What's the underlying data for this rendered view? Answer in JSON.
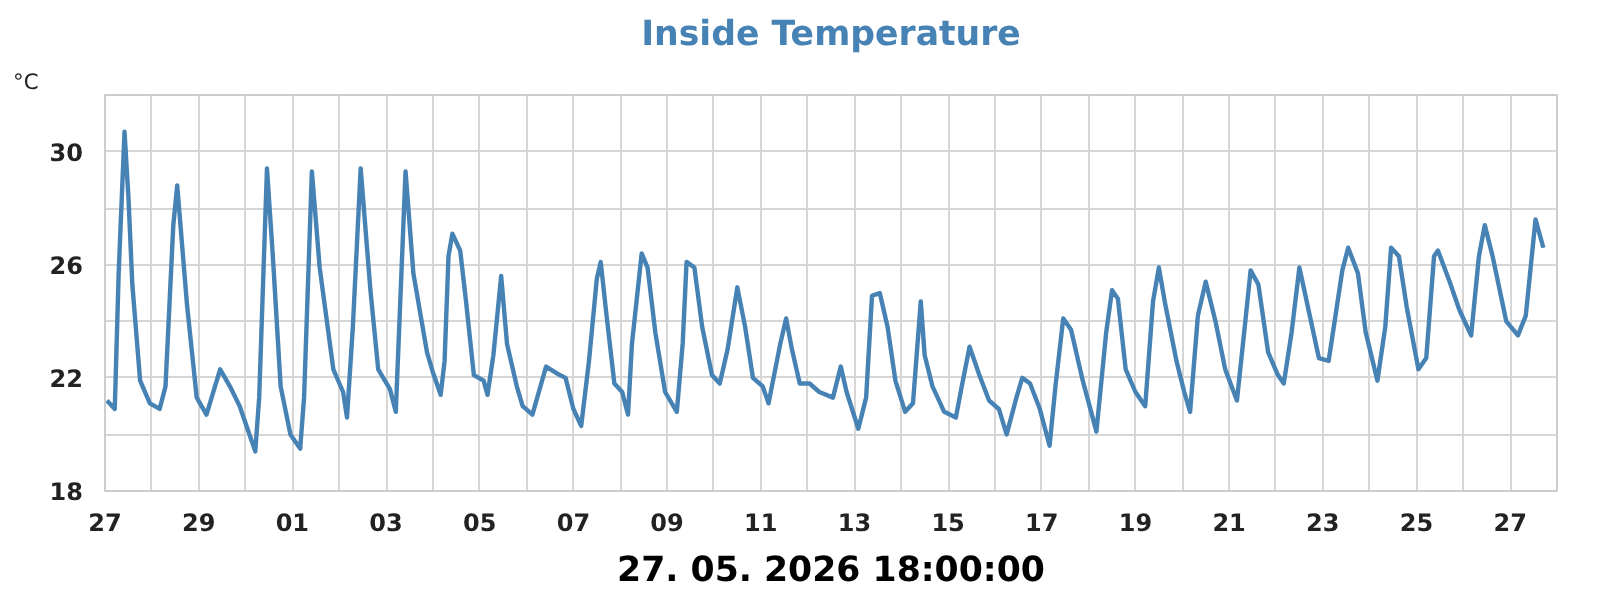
{
  "chart_data": {
    "type": "line",
    "title": "Inside Temperature",
    "ylabel": "°C",
    "annotations": [
      "27. 05. 2026 18:00:00"
    ],
    "series": [
      {
        "color": "#4682b4",
        "x": [
          "2026-04-27T01:00",
          "2026-04-27T05:00",
          "2026-04-27T07:00",
          "2026-04-27T10:00",
          "2026-04-27T12:00",
          "2026-04-27T14:00",
          "2026-04-27T18:00",
          "2026-04-27T23:00",
          "2026-04-28T04:00",
          "2026-04-28T07:00",
          "2026-04-28T11:00",
          "2026-04-28T13:00",
          "2026-04-28T18:00",
          "2026-04-28T23:00",
          "2026-04-29T04:00",
          "2026-04-29T11:00",
          "2026-04-29T16:00",
          "2026-04-29T21:00",
          "2026-04-30T01:00",
          "2026-04-30T05:00",
          "2026-04-30T07:00",
          "2026-04-30T11:00",
          "2026-04-30T14:00",
          "2026-04-30T18:00",
          "2026-04-30T23:00",
          "2026-05-01T04:00",
          "2026-05-01T06:00",
          "2026-05-01T10:00",
          "2026-05-01T14:00",
          "2026-05-01T21:00",
          "2026-05-02T02:00",
          "2026-05-02T04:00",
          "2026-05-02T07:00",
          "2026-05-02T11:00",
          "2026-05-02T16:00",
          "2026-05-02T20:00",
          "2026-05-03T02:00",
          "2026-05-03T05:00",
          "2026-05-03T07:00",
          "2026-05-03T10:00",
          "2026-05-03T14:00",
          "2026-05-03T21:00",
          "2026-05-04T00:00",
          "2026-05-04T04:00",
          "2026-05-04T06:00",
          "2026-05-04T08:00",
          "2026-05-04T10:00",
          "2026-05-04T14:00",
          "2026-05-04T17:00",
          "2026-05-04T21:00",
          "2026-05-05T02:00",
          "2026-05-05T04:00",
          "2026-05-05T07:00",
          "2026-05-05T11:00",
          "2026-05-05T14:00",
          "2026-05-05T19:00",
          "2026-05-05T22:00",
          "2026-05-06T03:00",
          "2026-05-06T10:00",
          "2026-05-06T17:00",
          "2026-05-06T20:00",
          "2026-05-07T00:00",
          "2026-05-07T04:00",
          "2026-05-07T08:00",
          "2026-05-07T12:00",
          "2026-05-07T14:00",
          "2026-05-07T17:00",
          "2026-05-07T21:00",
          "2026-05-08T01:00",
          "2026-05-08T04:00",
          "2026-05-08T06:00",
          "2026-05-08T11:00",
          "2026-05-08T14:00",
          "2026-05-08T18:00",
          "2026-05-08T23:00",
          "2026-05-09T05:00",
          "2026-05-09T08:00",
          "2026-05-09T10:00",
          "2026-05-09T14:00",
          "2026-05-09T18:00",
          "2026-05-09T23:00",
          "2026-05-10T03:00",
          "2026-05-10T07:00",
          "2026-05-10T12:00",
          "2026-05-10T16:00",
          "2026-05-10T20:00",
          "2026-05-11T01:00",
          "2026-05-11T04:00",
          "2026-05-11T10:00",
          "2026-05-11T13:00",
          "2026-05-11T16:00",
          "2026-05-11T20:00",
          "2026-05-12T01:00",
          "2026-05-12T06:00",
          "2026-05-12T13:00",
          "2026-05-12T17:00",
          "2026-05-12T20:00",
          "2026-05-13T02:00",
          "2026-05-13T06:00",
          "2026-05-13T09:00",
          "2026-05-13T13:00",
          "2026-05-13T17:00",
          "2026-05-13T21:00",
          "2026-05-14T02:00",
          "2026-05-14T06:00",
          "2026-05-14T10:00",
          "2026-05-14T12:00",
          "2026-05-14T16:00",
          "2026-05-14T22:00",
          "2026-05-15T04:00",
          "2026-05-15T07:00",
          "2026-05-15T11:00",
          "2026-05-15T16:00",
          "2026-05-15T21:00",
          "2026-05-16T02:00",
          "2026-05-16T06:00",
          "2026-05-16T11:00",
          "2026-05-16T14:00",
          "2026-05-16T18:00",
          "2026-05-16T23:00",
          "2026-05-17T04:00",
          "2026-05-17T07:00",
          "2026-05-17T11:00",
          "2026-05-17T15:00",
          "2026-05-17T21:00",
          "2026-05-18T04:00",
          "2026-05-18T09:00",
          "2026-05-18T12:00",
          "2026-05-18T15:00",
          "2026-05-18T19:00",
          "2026-05-19T00:00",
          "2026-05-19T05:00",
          "2026-05-19T09:00",
          "2026-05-19T12:00",
          "2026-05-19T15:00",
          "2026-05-19T21:00",
          "2026-05-20T01:00",
          "2026-05-20T04:00",
          "2026-05-20T08:00",
          "2026-05-20T12:00",
          "2026-05-20T17:00",
          "2026-05-20T22:00",
          "2026-05-21T04:00",
          "2026-05-21T08:00",
          "2026-05-21T11:00",
          "2026-05-21T15:00",
          "2026-05-21T20:00",
          "2026-05-22T01:00",
          "2026-05-22T04:00",
          "2026-05-22T08:00",
          "2026-05-22T12:00",
          "2026-05-22T17:00",
          "2026-05-22T22:00",
          "2026-05-23T03:00",
          "2026-05-23T10:00",
          "2026-05-23T13:00",
          "2026-05-23T18:00",
          "2026-05-23T22:00",
          "2026-05-24T04:00",
          "2026-05-24T08:00",
          "2026-05-24T11:00",
          "2026-05-24T15:00",
          "2026-05-24T19:00",
          "2026-05-25T01:00",
          "2026-05-25T05:00",
          "2026-05-25T09:00",
          "2026-05-25T11:00",
          "2026-05-25T17:00",
          "2026-05-25T22:00",
          "2026-05-26T04:00",
          "2026-05-26T08:00",
          "2026-05-26T11:00",
          "2026-05-26T15:00",
          "2026-05-26T22:00",
          "2026-05-27T04:00",
          "2026-05-27T08:00",
          "2026-05-27T13:00",
          "2026-05-27T17:00"
        ],
        "values": [
          21.2,
          20.9,
          25.7,
          30.7,
          28.4,
          25.3,
          21.9,
          21.1,
          20.9,
          21.7,
          27.4,
          28.8,
          24.6,
          21.3,
          20.7,
          22.3,
          21.7,
          21.0,
          20.2,
          19.4,
          21.3,
          29.4,
          26.3,
          21.7,
          20.0,
          19.5,
          21.3,
          29.3,
          25.9,
          22.3,
          21.5,
          20.6,
          23.8,
          29.4,
          25.1,
          22.3,
          21.6,
          20.8,
          24.2,
          29.3,
          25.7,
          22.9,
          22.2,
          21.4,
          22.6,
          26.3,
          27.1,
          26.5,
          24.7,
          22.1,
          21.9,
          21.4,
          22.8,
          25.6,
          23.2,
          21.7,
          21.0,
          20.7,
          22.4,
          22.1,
          22.0,
          20.9,
          20.3,
          22.6,
          25.5,
          26.1,
          24.2,
          21.8,
          21.5,
          20.7,
          23.2,
          26.4,
          25.9,
          23.6,
          21.5,
          20.8,
          23.2,
          26.1,
          25.9,
          23.8,
          22.1,
          21.8,
          23.0,
          25.2,
          23.8,
          22.0,
          21.7,
          21.1,
          23.2,
          24.1,
          23.0,
          21.8,
          21.8,
          21.5,
          21.3,
          22.4,
          21.5,
          20.2,
          21.3,
          24.9,
          25.0,
          23.8,
          21.9,
          20.8,
          21.1,
          24.7,
          22.8,
          21.7,
          20.8,
          20.6,
          21.7,
          23.1,
          22.1,
          21.2,
          20.9,
          20.0,
          21.3,
          22.0,
          21.8,
          20.9,
          19.6,
          21.7,
          24.1,
          23.7,
          21.9,
          20.1,
          23.6,
          25.1,
          24.8,
          22.3,
          21.5,
          21.0,
          24.7,
          25.9,
          24.7,
          22.6,
          21.5,
          20.8,
          24.2,
          25.4,
          24.0,
          22.3,
          21.2,
          23.8,
          25.8,
          25.3,
          22.9,
          22.1,
          21.8,
          23.6,
          25.9,
          24.3,
          22.7,
          22.6,
          25.8,
          26.6,
          25.7,
          23.6,
          21.9,
          23.8,
          26.6,
          26.3,
          24.5,
          22.3,
          22.7,
          26.3,
          26.5,
          25.4,
          24.4,
          23.5,
          26.3,
          27.4,
          26.3,
          24.0,
          23.5,
          24.2,
          27.6,
          26.6
        ]
      }
    ],
    "xlim": [
      "2026-04-27T00:00",
      "2026-05-28T00:00"
    ],
    "xticks": [
      {
        "value": "2026-04-27",
        "label": "27"
      },
      {
        "value": "2026-04-28",
        "label": null
      },
      {
        "value": "2026-04-29",
        "label": "29"
      },
      {
        "value": "2026-04-30",
        "label": null
      },
      {
        "value": "2026-05-01",
        "label": "01"
      },
      {
        "value": "2026-05-02",
        "label": null
      },
      {
        "value": "2026-05-03",
        "label": "03"
      },
      {
        "value": "2026-05-04",
        "label": null
      },
      {
        "value": "2026-05-05",
        "label": "05"
      },
      {
        "value": "2026-05-06",
        "label": null
      },
      {
        "value": "2026-05-07",
        "label": "07"
      },
      {
        "value": "2026-05-08",
        "label": null
      },
      {
        "value": "2026-05-09",
        "label": "09"
      },
      {
        "value": "2026-05-10",
        "label": null
      },
      {
        "value": "2026-05-11",
        "label": "11"
      },
      {
        "value": "2026-05-12",
        "label": null
      },
      {
        "value": "2026-05-13",
        "label": "13"
      },
      {
        "value": "2026-05-14",
        "label": null
      },
      {
        "value": "2026-05-15",
        "label": "15"
      },
      {
        "value": "2026-05-16",
        "label": null
      },
      {
        "value": "2026-05-17",
        "label": "17"
      },
      {
        "value": "2026-05-18",
        "label": null
      },
      {
        "value": "2026-05-19",
        "label": "19"
      },
      {
        "value": "2026-05-20",
        "label": null
      },
      {
        "value": "2026-05-21",
        "label": "21"
      },
      {
        "value": "2026-05-22",
        "label": null
      },
      {
        "value": "2026-05-23",
        "label": "23"
      },
      {
        "value": "2026-05-24",
        "label": null
      },
      {
        "value": "2026-05-25",
        "label": "25"
      },
      {
        "value": "2026-05-26",
        "label": null
      },
      {
        "value": "2026-05-27",
        "label": "27"
      }
    ],
    "ylim": [
      18,
      32
    ],
    "yticks": [
      18,
      {
        "value": 20,
        "label": null
      },
      22,
      {
        "value": 24,
        "label": null
      },
      26,
      {
        "value": 28,
        "label": null
      },
      30
    ],
    "grid": true,
    "line_style": "solid"
  }
}
